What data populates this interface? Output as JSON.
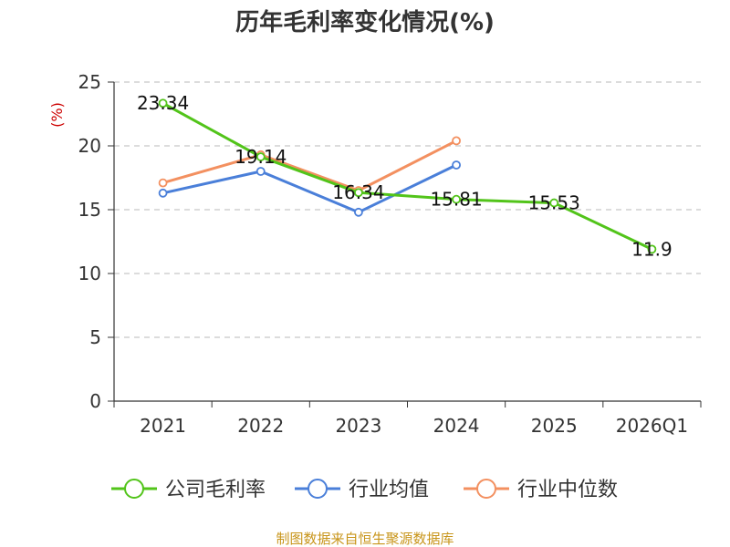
{
  "chart_data": {
    "type": "line",
    "title": "历年毛利率变化情况(%)",
    "ylabel": "(%)",
    "categories": [
      "2021",
      "2022",
      "2023",
      "2024",
      "2025",
      "2026Q1"
    ],
    "ylim": [
      0,
      25
    ],
    "yticks": [
      0,
      5,
      10,
      15,
      20,
      25
    ],
    "grid": true,
    "legend_position": "bottom",
    "series": [
      {
        "name": "公司毛利率",
        "color": "#52c41a",
        "values": [
          23.34,
          19.14,
          16.34,
          15.81,
          15.53,
          11.9
        ],
        "labels": [
          "23.34",
          "19.14",
          "16.34",
          "15.81",
          "15.53",
          "11.9"
        ]
      },
      {
        "name": "行业均值",
        "color": "#4a7fd9",
        "values": [
          16.3,
          18.0,
          14.8,
          18.5,
          null,
          null
        ]
      },
      {
        "name": "行业中位数",
        "color": "#f39060",
        "values": [
          17.1,
          19.3,
          16.5,
          20.4,
          null,
          null
        ]
      }
    ]
  },
  "source": "制图数据来自恒生聚源数据库"
}
